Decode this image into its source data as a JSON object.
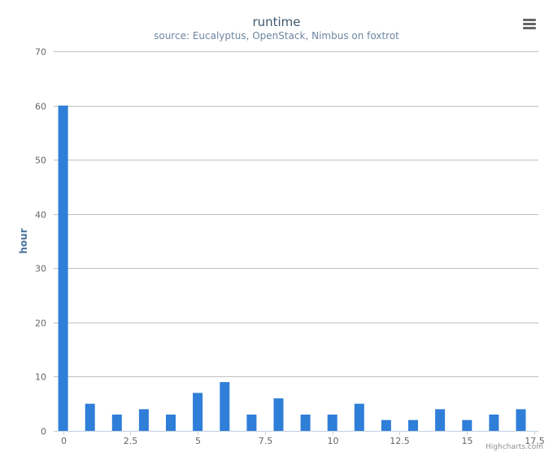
{
  "chart_data": {
    "type": "bar",
    "title": "runtime",
    "subtitle": "source: Eucalyptus, OpenStack, Nimbus on foxtrot",
    "ylabel": "hour",
    "xlabel": "",
    "x": [
      0,
      1,
      2,
      3,
      4,
      5,
      6,
      7,
      8,
      9,
      10,
      11,
      12,
      13,
      14,
      15,
      16,
      17
    ],
    "values": [
      60,
      5,
      3,
      4,
      3,
      7,
      9,
      3,
      6,
      3,
      3,
      5,
      2,
      2,
      4,
      2,
      3,
      4
    ],
    "xlim": [
      -0.35,
      17.65
    ],
    "ylim": [
      0,
      70
    ],
    "x_ticks": [
      0,
      2.5,
      5,
      7.5,
      10,
      12.5,
      15,
      17.5
    ],
    "x_tick_labels": [
      "0",
      "2.5",
      "5",
      "7.5",
      "10",
      "12.5",
      "15",
      "17.5"
    ],
    "y_ticks": [
      0,
      10,
      20,
      30,
      40,
      50,
      60,
      70
    ],
    "y_tick_labels": [
      "0",
      "10",
      "20",
      "30",
      "40",
      "50",
      "60",
      "70"
    ],
    "grid": true,
    "legend": "none",
    "bar_color": "#2f7ed8"
  },
  "credits": "Highcharts.com",
  "menu": {
    "icon": "hamburger-menu-icon"
  }
}
